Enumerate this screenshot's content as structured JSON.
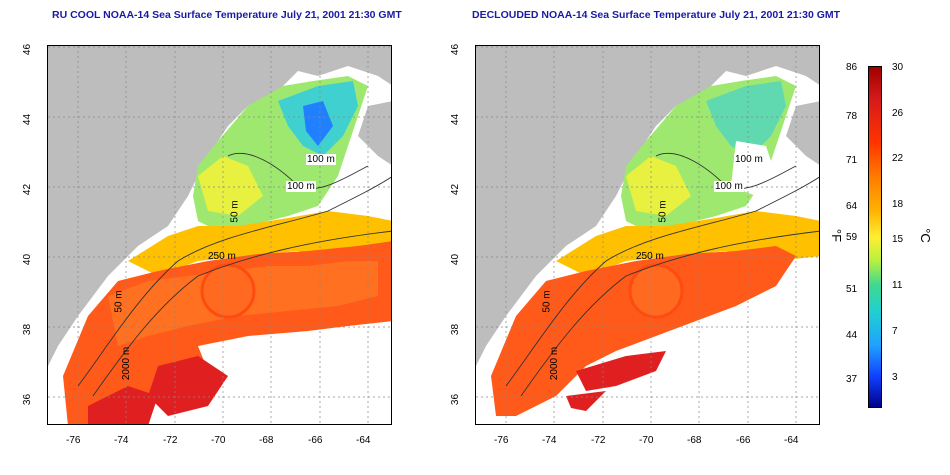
{
  "panels": [
    {
      "title": "RU COOL NOAA-14 Sea Surface Temperature July 21, 2001 21:30 GMT",
      "x_ticks": [
        "-76",
        "-74",
        "-72",
        "-70",
        "-68",
        "-66",
        "-64"
      ],
      "y_ticks": [
        "46",
        "44",
        "42",
        "40",
        "38",
        "36"
      ],
      "contour_labels": [
        "100 m",
        "100 m",
        "50 m",
        "250 m",
        "50 m",
        "2000 m"
      ]
    },
    {
      "title": "DECLOUDED NOAA-14 Sea Surface Temperature July 21, 2001 21:30 GMT",
      "x_ticks": [
        "-76",
        "-74",
        "-72",
        "-70",
        "-68",
        "-66",
        "-64"
      ],
      "y_ticks": [
        "46",
        "44",
        "42",
        "40",
        "38",
        "36"
      ],
      "contour_labels": [
        "100 m",
        "100 m",
        "50 m",
        "250 m",
        "50 m",
        "2000 m"
      ]
    }
  ],
  "colorbar": {
    "fahrenheit_ticks": [
      "86",
      "78",
      "71",
      "64",
      "59",
      "51",
      "44",
      "37"
    ],
    "celsius_ticks": [
      "30",
      "26",
      "22",
      "18",
      "15",
      "11",
      "7",
      "3"
    ],
    "fahrenheit_unit": "°F",
    "celsius_unit": "°C"
  },
  "colors": {
    "land": "#bdbdbd",
    "cloud": "#ffffff",
    "title": "#1a1aa6"
  }
}
